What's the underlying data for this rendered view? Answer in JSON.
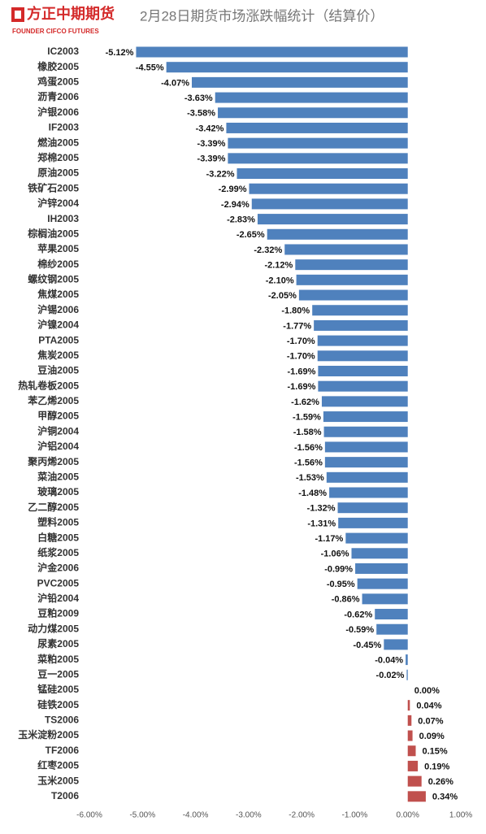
{
  "header": {
    "logo": "方正中期期货",
    "logo_en": "FOUNDER CIFCO FUTURES"
  },
  "chart_data": {
    "type": "hbar",
    "title": "2月28日期货市场涨跌幅统计（结算价）",
    "categories": [
      "IC2003",
      "橡胶2005",
      "鸡蛋2005",
      "沥青2006",
      "沪银2006",
      "IF2003",
      "燃油2005",
      "郑棉2005",
      "原油2005",
      "铁矿石2005",
      "沪锌2004",
      "IH2003",
      "棕榈油2005",
      "苹果2005",
      "棉纱2005",
      "螺纹钢2005",
      "焦煤2005",
      "沪锡2006",
      "沪镍2004",
      "PTA2005",
      "焦炭2005",
      "豆油2005",
      "热轧卷板2005",
      "苯乙烯2005",
      "甲醇2005",
      "沪铜2004",
      "沪铝2004",
      "聚丙烯2005",
      "菜油2005",
      "玻璃2005",
      "乙二醇2005",
      "塑料2005",
      "白糖2005",
      "纸浆2005",
      "沪金2006",
      "PVC2005",
      "沪铅2004",
      "豆粕2009",
      "动力煤2005",
      "尿素2005",
      "菜粕2005",
      "豆一2005",
      "锰硅2005",
      "硅铁2005",
      "TS2006",
      "玉米淀粉2005",
      "TF2006",
      "红枣2005",
      "玉米2005",
      "T2006"
    ],
    "values": [
      -5.12,
      -4.55,
      -4.07,
      -3.63,
      -3.58,
      -3.42,
      -3.39,
      -3.39,
      -3.22,
      -2.99,
      -2.94,
      -2.83,
      -2.65,
      -2.32,
      -2.12,
      -2.1,
      -2.05,
      -1.8,
      -1.77,
      -1.7,
      -1.7,
      -1.69,
      -1.69,
      -1.62,
      -1.59,
      -1.58,
      -1.56,
      -1.56,
      -1.53,
      -1.48,
      -1.32,
      -1.31,
      -1.17,
      -1.06,
      -0.99,
      -0.95,
      -0.86,
      -0.62,
      -0.59,
      -0.45,
      -0.04,
      -0.02,
      0.0,
      0.04,
      0.07,
      0.09,
      0.15,
      0.19,
      0.26,
      0.34
    ],
    "value_labels": [
      "-5.12%",
      "-4.55%",
      "-4.07%",
      "-3.63%",
      "-3.58%",
      "-3.42%",
      "-3.39%",
      "-3.39%",
      "-3.22%",
      "-2.99%",
      "-2.94%",
      "-2.83%",
      "-2.65%",
      "-2.32%",
      "-2.12%",
      "-2.10%",
      "-2.05%",
      "-1.80%",
      "-1.77%",
      "-1.70%",
      "-1.70%",
      "-1.69%",
      "-1.69%",
      "-1.62%",
      "-1.59%",
      "-1.58%",
      "-1.56%",
      "-1.56%",
      "-1.53%",
      "-1.48%",
      "-1.32%",
      "-1.31%",
      "-1.17%",
      "-1.06%",
      "-0.99%",
      "-0.95%",
      "-0.86%",
      "-0.62%",
      "-0.59%",
      "-0.45%",
      "-0.04%",
      "-0.02%",
      "0.00%",
      "0.04%",
      "0.07%",
      "0.09%",
      "0.15%",
      "0.19%",
      "0.26%",
      "0.34%"
    ],
    "negative_color": "#4f81bd",
    "positive_color": "#c0504d",
    "xlim": [
      -6,
      1
    ],
    "xticks": [
      {
        "value": -6,
        "label": "-6.00%"
      },
      {
        "value": -5,
        "label": "-5.00%"
      },
      {
        "value": -4,
        "label": "-4.00%"
      },
      {
        "value": -3,
        "label": "-3.00%"
      },
      {
        "value": -2,
        "label": "-2.00%"
      },
      {
        "value": -1,
        "label": "-1.00%"
      },
      {
        "value": 0,
        "label": "0.00%"
      },
      {
        "value": 1,
        "label": "1.00%"
      }
    ],
    "grid": false
  }
}
